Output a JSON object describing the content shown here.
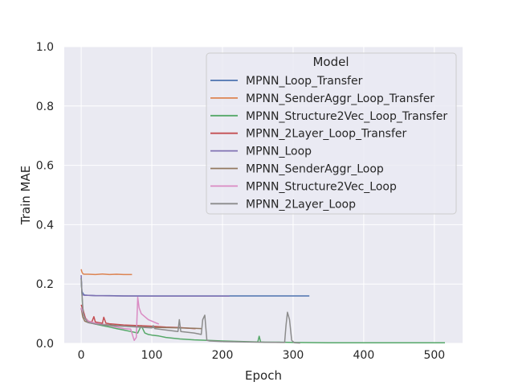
{
  "chart_data": {
    "type": "line",
    "xlabel": "Epoch",
    "ylabel": "Train MAE",
    "xlim": [
      -24,
      540
    ],
    "ylim": [
      0.0,
      1.0
    ],
    "xticks": [
      0,
      100,
      200,
      300,
      400,
      500
    ],
    "yticks": [
      0.0,
      0.2,
      0.4,
      0.6,
      0.8,
      1.0
    ],
    "ytick_labels": [
      "0.0",
      "0.2",
      "0.4",
      "0.6",
      "0.8",
      "1.0"
    ],
    "grid": true,
    "legend_title": "Model",
    "legend_position": "upper-right",
    "series": [
      {
        "name": "MPNN_Loop_Transfer",
        "color": "#4c72b0",
        "x": [
          0,
          1,
          3,
          5,
          10,
          20,
          40,
          60,
          100,
          150,
          200,
          250,
          300,
          323
        ],
        "y": [
          0.22,
          0.175,
          0.166,
          0.163,
          0.162,
          0.161,
          0.161,
          0.16,
          0.16,
          0.16,
          0.16,
          0.16,
          0.16,
          0.16
        ]
      },
      {
        "name": "MPNN_SenderAggr_Loop_Transfer",
        "color": "#dd8452",
        "x": [
          0,
          1,
          2,
          3,
          5,
          10,
          20,
          30,
          40,
          50,
          60,
          72
        ],
        "y": [
          0.25,
          0.24,
          0.236,
          0.234,
          0.233,
          0.233,
          0.232,
          0.234,
          0.232,
          0.233,
          0.232,
          0.232
        ]
      },
      {
        "name": "MPNN_Structure2Vec_Loop_Transfer",
        "color": "#55a868",
        "x": [
          0,
          2,
          5,
          10,
          20,
          30,
          40,
          50,
          60,
          70,
          80,
          85,
          90,
          95,
          100,
          110,
          120,
          140,
          160,
          180,
          200,
          230,
          250,
          252,
          254,
          260,
          280,
          300,
          350,
          400,
          450,
          500,
          515
        ],
        "y": [
          0.22,
          0.12,
          0.085,
          0.072,
          0.065,
          0.06,
          0.055,
          0.05,
          0.045,
          0.04,
          0.035,
          0.06,
          0.035,
          0.03,
          0.028,
          0.025,
          0.02,
          0.015,
          0.012,
          0.01,
          0.008,
          0.006,
          0.005,
          0.024,
          0.005,
          0.004,
          0.004,
          0.003,
          0.002,
          0.002,
          0.002,
          0.002,
          0.002
        ]
      },
      {
        "name": "MPNN_2Layer_Loop_Transfer",
        "color": "#c44e52",
        "x": [
          0,
          3,
          6,
          10,
          15,
          18,
          20,
          25,
          30,
          32,
          35,
          40,
          50,
          60,
          80,
          100,
          120,
          140,
          160,
          162
        ],
        "y": [
          0.13,
          0.11,
          0.085,
          0.075,
          0.072,
          0.09,
          0.072,
          0.07,
          0.068,
          0.088,
          0.068,
          0.066,
          0.064,
          0.062,
          0.06,
          0.058,
          0.055,
          0.053,
          0.05,
          0.05
        ]
      },
      {
        "name": "MPNN_Loop",
        "color": "#8172b3",
        "x": [
          0,
          1,
          3,
          5,
          10,
          20,
          50,
          100,
          150,
          210
        ],
        "y": [
          0.23,
          0.17,
          0.163,
          0.162,
          0.162,
          0.161,
          0.16,
          0.159,
          0.159,
          0.159
        ]
      },
      {
        "name": "MPNN_SenderAggr_Loop",
        "color": "#937860",
        "x": [
          0,
          2,
          5,
          10,
          20,
          40,
          60,
          80,
          100,
          120,
          140,
          160,
          170
        ],
        "y": [
          0.12,
          0.09,
          0.075,
          0.07,
          0.066,
          0.062,
          0.058,
          0.056,
          0.054,
          0.053,
          0.052,
          0.051,
          0.05
        ]
      },
      {
        "name": "MPNN_Structure2Vec_Loop",
        "color": "#da8bc3",
        "x": [
          0,
          3,
          5,
          10,
          20,
          40,
          60,
          70,
          75,
          78,
          80,
          82,
          85,
          90,
          95,
          100,
          105,
          110
        ],
        "y": [
          0.12,
          0.1,
          0.085,
          0.075,
          0.068,
          0.06,
          0.05,
          0.048,
          0.01,
          0.02,
          0.155,
          0.12,
          0.1,
          0.09,
          0.08,
          0.075,
          0.07,
          0.065
        ]
      },
      {
        "name": "MPNN_2Layer_Loop",
        "color": "#8c8c8c",
        "x": [
          0,
          1,
          2,
          3,
          5,
          8,
          10,
          20,
          40,
          60,
          100,
          102,
          104,
          120,
          137,
          139,
          141,
          160,
          170,
          172,
          175,
          178,
          182,
          200,
          250,
          288,
          290,
          292,
          295,
          298,
          302,
          310
        ],
        "y": [
          0.22,
          0.17,
          0.13,
          0.1,
          0.085,
          0.075,
          0.07,
          0.065,
          0.06,
          0.058,
          0.052,
          0.06,
          0.05,
          0.045,
          0.04,
          0.08,
          0.04,
          0.035,
          0.03,
          0.08,
          0.095,
          0.01,
          0.008,
          0.006,
          0.004,
          0.003,
          0.06,
          0.105,
          0.08,
          0.01,
          0.002,
          0.001
        ]
      }
    ]
  }
}
